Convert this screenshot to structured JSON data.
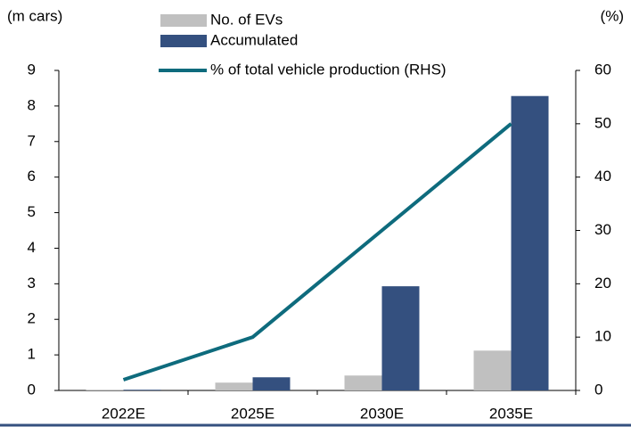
{
  "chart_data": {
    "type": "bar_line",
    "y_label": "(m cars)",
    "y2_label": "(%)",
    "categories": [
      "2022E",
      "2025E",
      "2030E",
      "2035E"
    ],
    "series": [
      {
        "name": "No. of EVs",
        "color": "#c0c0c0",
        "type": "bar",
        "values": [
          0.01,
          0.22,
          0.42,
          1.12
        ]
      },
      {
        "name": "Accumulated",
        "color": "#34507f",
        "type": "bar",
        "values": [
          0.02,
          0.37,
          2.93,
          8.28
        ]
      },
      {
        "name": "% of total vehicle production (RHS)",
        "color": "#0e6b7d",
        "type": "line",
        "axis": "y2",
        "values": [
          2,
          10,
          30,
          50
        ]
      }
    ],
    "ylim": [
      0,
      9
    ],
    "yticks": [
      0,
      1,
      2,
      3,
      4,
      5,
      6,
      7,
      8,
      9
    ],
    "y2lim": [
      0,
      60
    ],
    "y2ticks": [
      0,
      10,
      20,
      30,
      40,
      50,
      60
    ]
  }
}
